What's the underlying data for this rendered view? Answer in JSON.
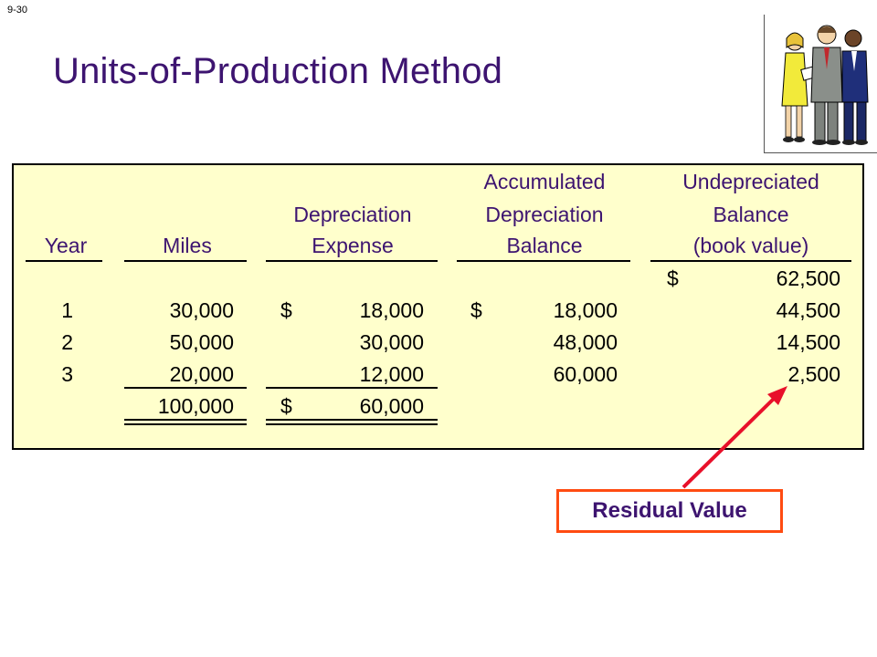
{
  "slide_number": "9-30",
  "title": "Units-of-Production Method",
  "table": {
    "headers": {
      "year": [
        "Year"
      ],
      "miles": [
        "Miles"
      ],
      "depreciation_expense": [
        "Depreciation",
        "Expense"
      ],
      "accumulated_depreciation": [
        "Accumulated",
        "Depreciation",
        "Balance"
      ],
      "undepreciated_balance": [
        "Undepreciated",
        "Balance",
        "(book value)"
      ]
    },
    "opening_row": {
      "dollar": "$",
      "balance": "62,500"
    },
    "rows": [
      {
        "year": "1",
        "miles": "30,000",
        "exp_dollar": "$",
        "expense": "18,000",
        "acc_dollar": "$",
        "accumulated": "18,000",
        "balance": "44,500"
      },
      {
        "year": "2",
        "miles": "50,000",
        "exp_dollar": "",
        "expense": "30,000",
        "acc_dollar": "",
        "accumulated": "48,000",
        "balance": "14,500"
      },
      {
        "year": "3",
        "miles": "20,000",
        "exp_dollar": "",
        "expense": "12,000",
        "acc_dollar": "",
        "accumulated": "60,000",
        "balance": "2,500"
      }
    ],
    "totals": {
      "miles": "100,000",
      "exp_dollar": "$",
      "expense": "60,000"
    }
  },
  "callout": {
    "label": "Residual Value"
  },
  "colors": {
    "title": "#3d1470",
    "table_bg": "#ffffcc",
    "callout_border": "#ff4b12",
    "arrow": "#e8102a"
  },
  "icons": {
    "clipart": "business-people-clipart-icon"
  }
}
